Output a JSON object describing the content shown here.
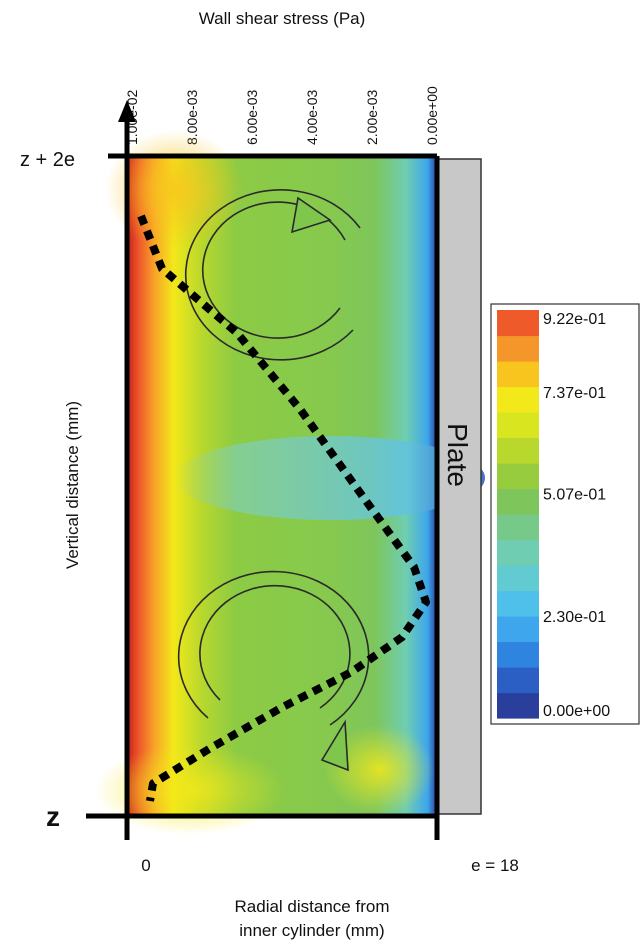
{
  "chart_data": {
    "type": "heatmap",
    "title": "",
    "top_axis": {
      "title": "Wall shear stress (Pa)",
      "ticks": [
        "1.00e-02",
        "8.00e-03",
        "6.00e-03",
        "4.00e-03",
        "2.00e-03",
        "0.00e+00"
      ],
      "values": [
        0.01,
        0.008,
        0.006,
        0.004,
        0.002,
        0.0
      ],
      "direction": "decreasing left to right"
    },
    "y_axis": {
      "title": "Vertical distance (mm)",
      "ticks": [
        "z + 2e",
        "z"
      ]
    },
    "x_axis": {
      "title_line1": "Radial distance from",
      "title_line2": "inner cylinder (mm)",
      "ticks": [
        "0",
        "e = 18"
      ],
      "range": [
        0,
        18
      ]
    },
    "plate_label": "Plate",
    "colorbar": {
      "tick_labels": [
        "9.22e-01",
        "7.37e-01",
        "5.07e-01",
        "2.30e-01",
        "0.00e+00"
      ],
      "tick_values": [
        0.922,
        0.737,
        0.507,
        0.23,
        0.0
      ],
      "range": [
        0.0,
        0.922
      ],
      "levels": 16,
      "colors": [
        "#2a3e9c",
        "#2b5fc4",
        "#2f84e0",
        "#3da6ec",
        "#4fc0ea",
        "#62cbd2",
        "#6fcdb1",
        "#77c98a",
        "#7ec65c",
        "#96cc3e",
        "#b8d82d",
        "#d8e51f",
        "#f3e81a",
        "#f8c51e",
        "#f5962a",
        "#ee5a2a"
      ]
    },
    "wall_shear_profile": {
      "description_free": true,
      "stress_Pa": [
        0.0097,
        0.009,
        0.0065,
        0.0044,
        0.0023,
        0.0006,
        0.0002,
        0.001,
        0.0027,
        0.005,
        0.0074,
        0.0093,
        0.0094
      ],
      "height_fraction": [
        0.0,
        0.09,
        0.2,
        0.33,
        0.48,
        0.6,
        0.66,
        0.72,
        0.78,
        0.84,
        0.91,
        0.97,
        1.0
      ]
    },
    "vortices": [
      {
        "rotation": "counterclockwise",
        "position": "upper"
      },
      {
        "rotation": "counterclockwise",
        "position": "lower"
      }
    ]
  }
}
